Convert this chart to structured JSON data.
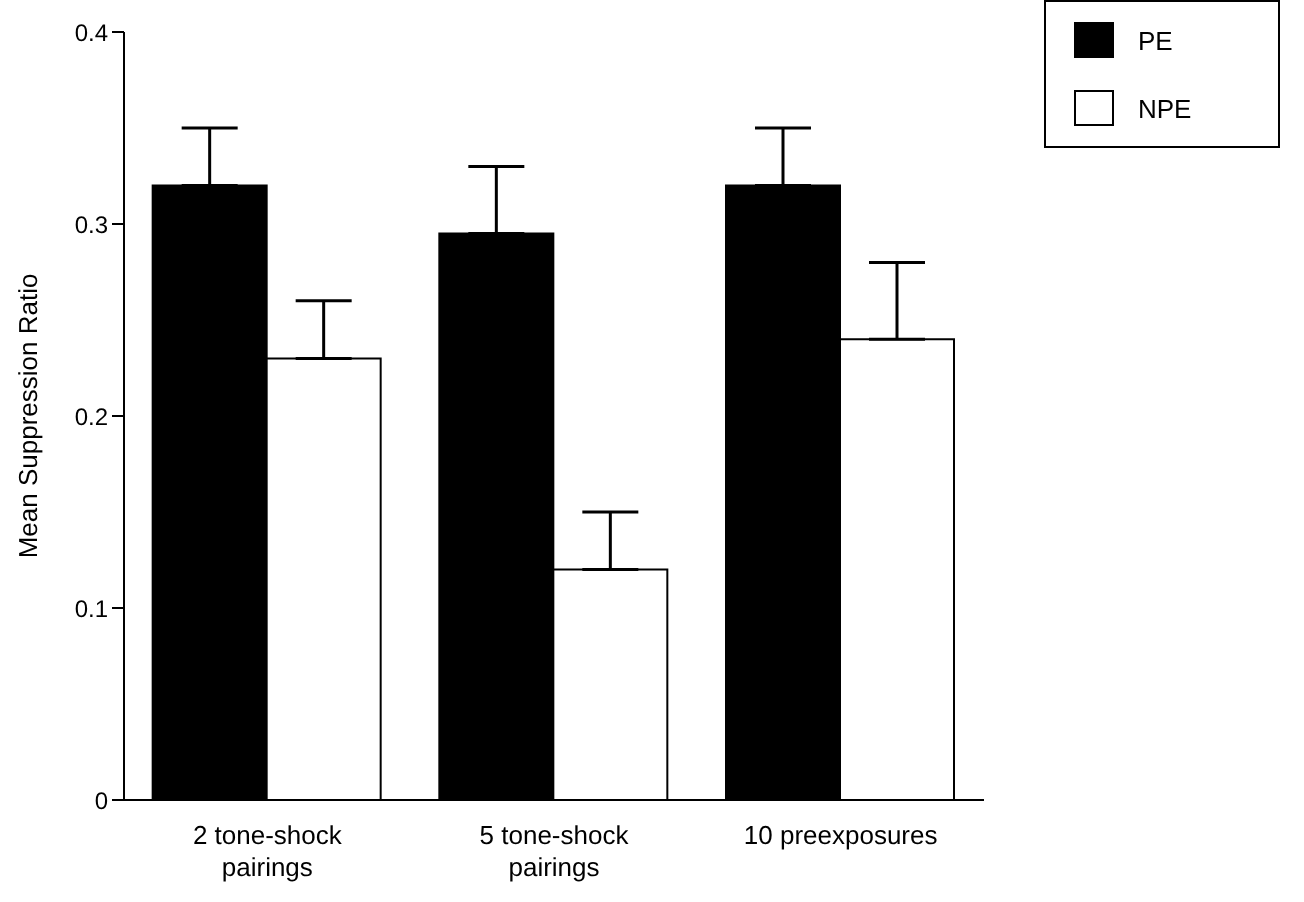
{
  "chart_data": {
    "type": "bar",
    "ylabel": "Mean Suppression Ratio",
    "categories": [
      "2 tone-shock pairings",
      "5 tone-shock pairings",
      "10 preexposures"
    ],
    "series": [
      {
        "name": "PE",
        "color": "#000000",
        "values": [
          0.32,
          0.295,
          0.32
        ],
        "errors": [
          [
            0.32,
            0.35
          ],
          [
            0.295,
            0.33
          ],
          [
            0.32,
            0.35
          ]
        ]
      },
      {
        "name": "NPE",
        "color": "#ffffff",
        "values": [
          0.23,
          0.12,
          0.24
        ],
        "errors": [
          [
            0.23,
            0.26
          ],
          [
            0.12,
            0.15
          ],
          [
            0.24,
            0.28
          ]
        ]
      }
    ],
    "ylim": [
      0,
      0.4
    ],
    "yticks": [
      0,
      0.1,
      0.2,
      0.3,
      0.4
    ],
    "grid": false,
    "legend": "top right"
  }
}
